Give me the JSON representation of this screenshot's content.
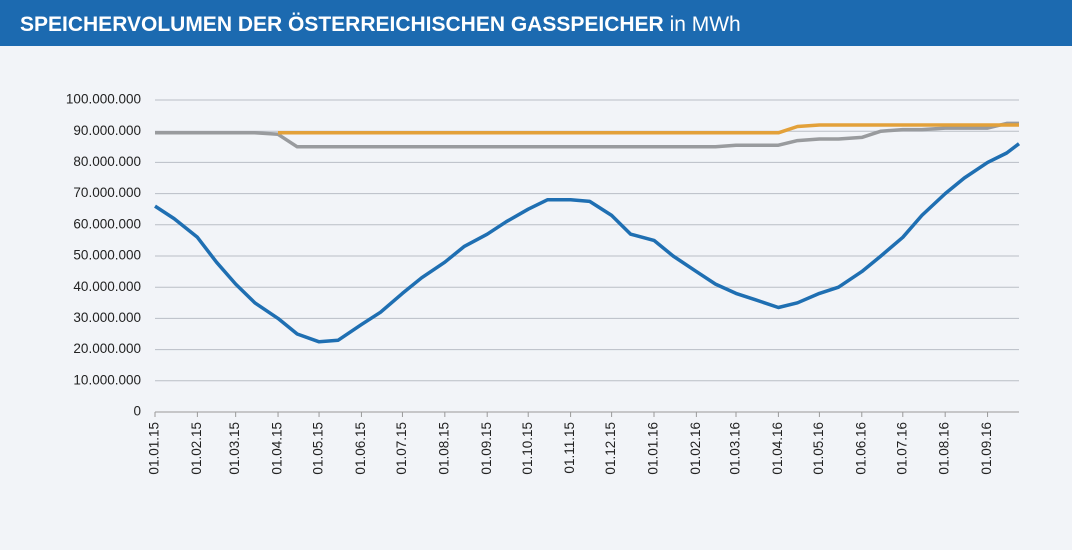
{
  "chart_data": {
    "type": "line",
    "title": "SPEICHERVOLUMEN DER ÖSTERREICHISCHEN GASSPEICHER",
    "unit": "in MWh",
    "x": [
      "01.01.15",
      "15.01.15",
      "01.02.15",
      "15.02.15",
      "01.03.15",
      "15.03.15",
      "01.04.15",
      "15.04.15",
      "01.05.15",
      "15.05.15",
      "01.06.15",
      "15.06.15",
      "01.07.15",
      "15.07.15",
      "01.08.15",
      "15.08.15",
      "01.09.15",
      "15.09.15",
      "01.10.15",
      "15.10.15",
      "01.11.15",
      "15.11.15",
      "01.12.15",
      "15.12.15",
      "01.01.16",
      "15.01.16",
      "01.02.16",
      "15.02.16",
      "01.03.16",
      "15.03.16",
      "01.04.16",
      "15.04.16",
      "01.05.16",
      "15.05.16",
      "01.06.16",
      "15.06.16",
      "01.07.16",
      "15.07.16",
      "01.08.16",
      "15.08.16",
      "01.09.16",
      "15.09.16",
      "24.09.16"
    ],
    "series": [
      {
        "color": "#999b9e",
        "values": [
          89500000,
          89500000,
          89500000,
          89500000,
          89500000,
          89500000,
          89000000,
          85000000,
          85000000,
          85000000,
          85000000,
          85000000,
          85000000,
          85000000,
          85000000,
          85000000,
          85000000,
          85000000,
          85000000,
          85000000,
          85000000,
          85000000,
          85000000,
          85000000,
          85000000,
          85000000,
          85000000,
          85000000,
          85500000,
          85500000,
          85500000,
          87000000,
          87500000,
          87500000,
          88000000,
          90000000,
          90500000,
          90500000,
          91000000,
          91000000,
          91000000,
          92500000,
          92500000
        ]
      },
      {
        "color": "#e3a13a",
        "values": [
          null,
          null,
          null,
          null,
          null,
          null,
          89500000,
          89500000,
          89500000,
          89500000,
          89500000,
          89500000,
          89500000,
          89500000,
          89500000,
          89500000,
          89500000,
          89500000,
          89500000,
          89500000,
          89500000,
          89500000,
          89500000,
          89500000,
          89500000,
          89500000,
          89500000,
          89500000,
          89500000,
          89500000,
          89500000,
          91500000,
          92000000,
          92000000,
          92000000,
          92000000,
          92000000,
          92000000,
          92000000,
          92000000,
          92000000,
          92000000,
          92000000
        ]
      },
      {
        "color": "#1f6fb2",
        "values": [
          66000000,
          62000000,
          56000000,
          48000000,
          41000000,
          35000000,
          30000000,
          25000000,
          22500000,
          23000000,
          28000000,
          32000000,
          38000000,
          43000000,
          48000000,
          53000000,
          57000000,
          61000000,
          65000000,
          68000000,
          68000000,
          67500000,
          63000000,
          57000000,
          55000000,
          50000000,
          45000000,
          41000000,
          38000000,
          36000000,
          33500000,
          35000000,
          38000000,
          40000000,
          45000000,
          50000000,
          56000000,
          63000000,
          70000000,
          75000000,
          80000000,
          83000000,
          86000000
        ]
      }
    ],
    "xlim": [
      "01.01.15",
      "24.09.16"
    ],
    "xticks": [
      "01.01.15",
      "01.02.15",
      "01.03.15",
      "01.04.15",
      "01.05.15",
      "01.06.15",
      "01.07.15",
      "01.08.15",
      "01.09.15",
      "01.10.15",
      "01.11.15",
      "01.12.15",
      "01.01.16",
      "01.02.16",
      "01.03.16",
      "01.04.16",
      "01.05.16",
      "01.06.16",
      "01.07.16",
      "01.08.16",
      "01.09.16"
    ],
    "ylim": [
      0,
      100000000
    ],
    "yticks": [
      0,
      {
        "value": 10000000,
        "label": "10.000.000"
      },
      {
        "value": 20000000,
        "label": "20.000.000"
      },
      {
        "value": 30000000,
        "label": "30.000.000"
      },
      {
        "value": 40000000,
        "label": "40.000.000"
      },
      {
        "value": 50000000,
        "label": "50.000.000"
      },
      {
        "value": 60000000,
        "label": "60.000.000"
      },
      {
        "value": 70000000,
        "label": "70.000.000"
      },
      {
        "value": 80000000,
        "label": "80.000.000"
      },
      {
        "value": 90000000,
        "label": "90.000.000"
      },
      {
        "value": 100000000,
        "label": "100.000.000"
      }
    ],
    "grid": true
  }
}
